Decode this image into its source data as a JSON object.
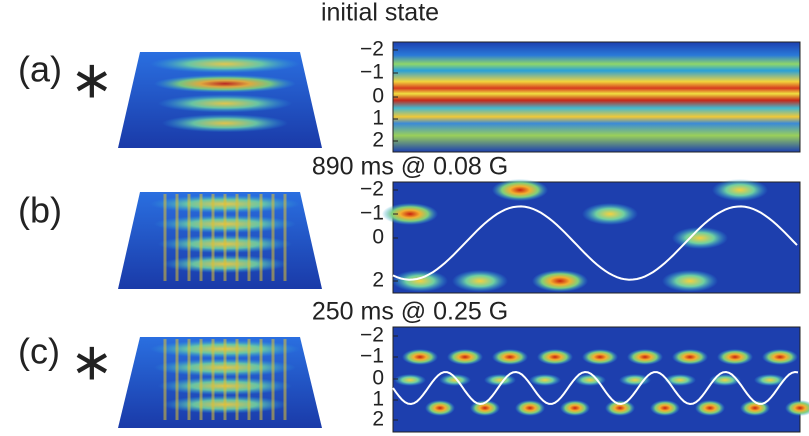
{
  "panels": [
    {
      "label": "(a)",
      "marker": "∗",
      "title": "initial state",
      "yticks": [
        "−2",
        "−1",
        "0",
        "1",
        "2"
      ]
    },
    {
      "label": "(b)",
      "title": "890 ms @ 0.08 G",
      "yticks": [
        "−2",
        "−1",
        "0",
        "2"
      ]
    },
    {
      "label": "(c)",
      "marker": "∗",
      "title": "250 ms @ 0.25 G",
      "yticks": [
        "−2",
        "−1",
        "0",
        "1",
        "2"
      ]
    }
  ]
}
